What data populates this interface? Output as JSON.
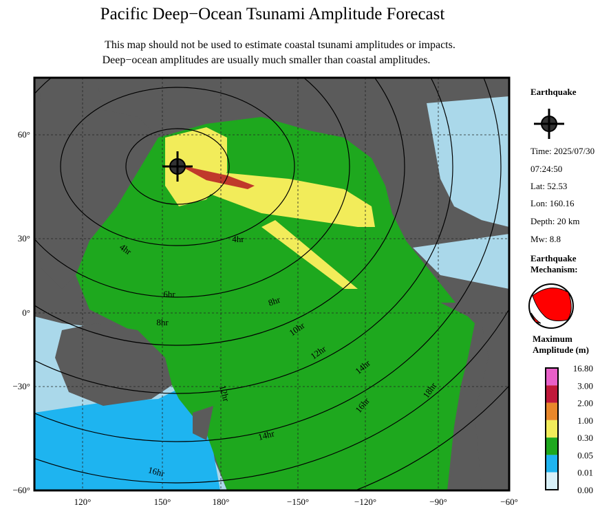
{
  "header": {
    "title": "Pacific Deep−Ocean Tsunami Amplitude Forecast",
    "subtitle_lines": [
      "This map should not be used to estimate coastal tsunami amplitudes or impacts.",
      "Deep−ocean amplitudes are usually much smaller than coastal amplitudes."
    ]
  },
  "map": {
    "lat_labels": [
      "60°",
      "30°",
      "0°",
      "−30°",
      "−60°"
    ],
    "lon_labels": [
      "120°",
      "150°",
      "180°",
      "−150°",
      "−120°",
      "−90°",
      "−60°"
    ],
    "contour_labels": [
      "4hr",
      "4hr",
      "6hr",
      "8hr",
      "8hr",
      "10hr",
      "12hr",
      "12hr",
      "14hr",
      "14hr",
      "16hr",
      "16hr",
      "18hr"
    ]
  },
  "sidebar": {
    "earthquake_heading": "Earthquake",
    "time": "Time: 2025/07/30",
    "clock": "07:24:50",
    "lat": "Lat: 52.53",
    "lon": "Lon: 160.16",
    "depth": "Depth: 20 km",
    "magnitude": "Mw: 8.8",
    "mechanism_heading": [
      "Earthquake",
      "Mechanism:"
    ],
    "amplitude_heading": [
      "Maximum",
      "Amplitude (m)"
    ],
    "colorbar_labels": [
      "16.80",
      "3.00",
      "2.00",
      "1.00",
      "0.30",
      "0.05",
      "0.01",
      "0.00"
    ]
  }
}
